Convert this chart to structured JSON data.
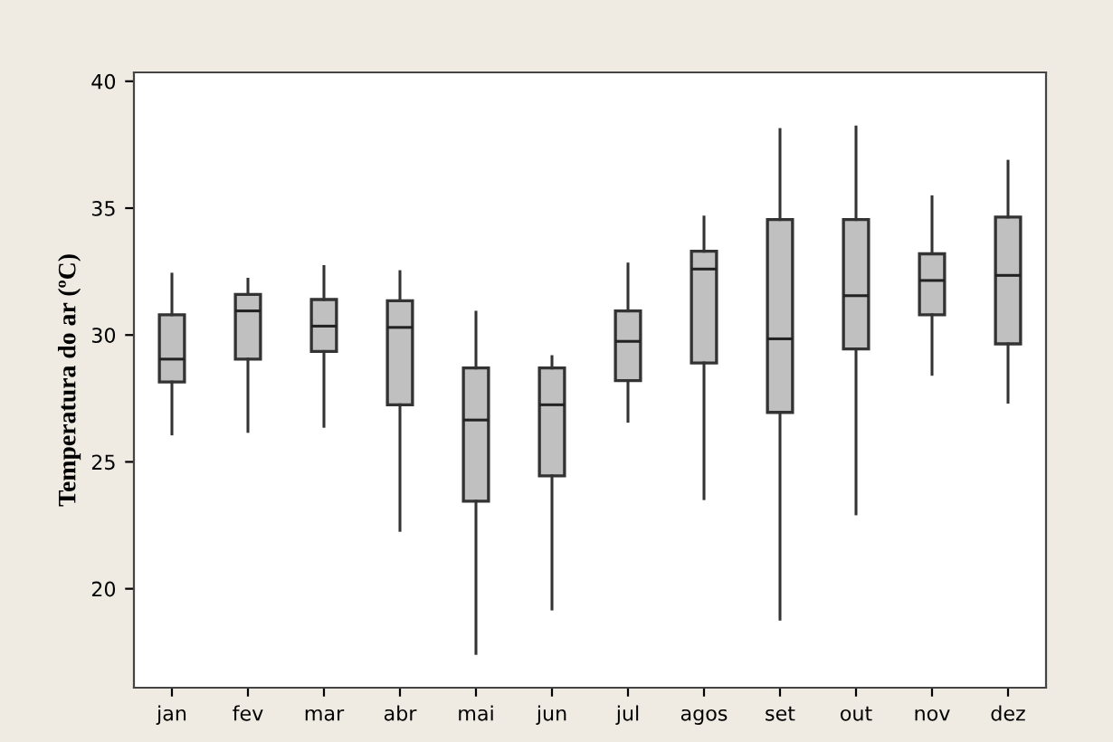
{
  "chart_data": {
    "type": "box",
    "ylabel": "Temperatura do ar (ºC)",
    "categories": [
      "jan",
      "fev",
      "mar",
      "abr",
      "mai",
      "jun",
      "jul",
      "agos",
      "set",
      "out",
      "nov",
      "dez"
    ],
    "color": "#c0c0c0",
    "boxes": [
      {
        "low": 26.1,
        "q1": 28.15,
        "median": 29.05,
        "q3": 30.8,
        "high": 32.4
      },
      {
        "low": 26.2,
        "q1": 29.05,
        "median": 30.95,
        "q3": 31.6,
        "high": 32.2
      },
      {
        "low": 26.4,
        "q1": 29.35,
        "median": 30.35,
        "q3": 31.4,
        "high": 32.7
      },
      {
        "low": 22.3,
        "q1": 27.25,
        "median": 30.3,
        "q3": 31.35,
        "high": 32.5
      },
      {
        "low": 17.45,
        "q1": 23.45,
        "median": 26.65,
        "q3": 28.7,
        "high": 30.9
      },
      {
        "low": 19.2,
        "q1": 24.45,
        "median": 27.25,
        "q3": 28.7,
        "high": 29.15
      },
      {
        "low": 26.6,
        "q1": 28.2,
        "median": 29.75,
        "q3": 30.95,
        "high": 32.8
      },
      {
        "low": 23.55,
        "q1": 28.9,
        "median": 32.6,
        "q3": 33.3,
        "high": 34.65
      },
      {
        "low": 18.8,
        "q1": 26.95,
        "median": 29.85,
        "q3": 34.55,
        "high": 38.1
      },
      {
        "low": 22.95,
        "q1": 29.45,
        "median": 31.55,
        "q3": 34.55,
        "high": 38.2
      },
      {
        "low": 28.45,
        "q1": 30.8,
        "median": 32.15,
        "q3": 33.2,
        "high": 35.45
      },
      {
        "low": 27.35,
        "q1": 29.65,
        "median": 32.35,
        "q3": 34.65,
        "high": 36.85
      }
    ],
    "ylim": [
      16.1,
      40.35
    ],
    "yticks": [
      20,
      25,
      30,
      35,
      40
    ],
    "grid": false
  }
}
